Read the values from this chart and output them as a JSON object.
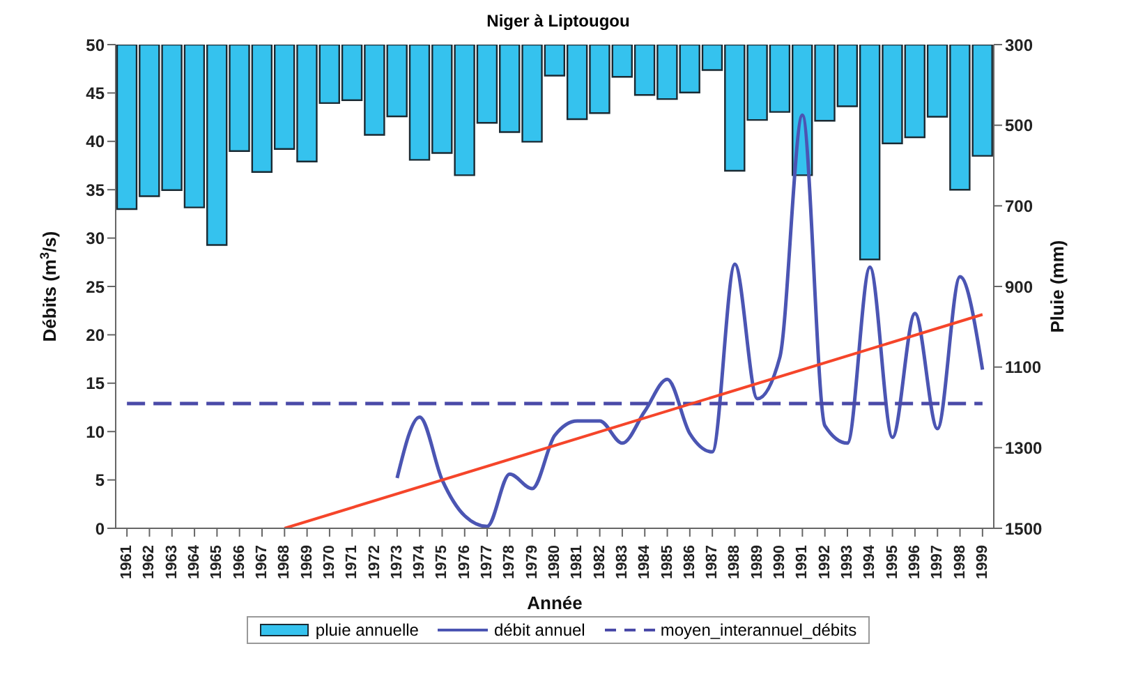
{
  "chart_data": {
    "type": "bar",
    "title": "Niger à Liptougou",
    "xlabel": "Année",
    "ylabel": "Débits (m$^{3}$/s)",
    "y2label": "Pluie (mm)",
    "categories": [
      "1961",
      "1962",
      "1963",
      "1964",
      "1965",
      "1966",
      "1967",
      "1968",
      "1969",
      "1970",
      "1971",
      "1972",
      "1973",
      "1974",
      "1975",
      "1976",
      "1977",
      "1978",
      "1979",
      "1980",
      "1981",
      "1982",
      "1983",
      "1984",
      "1985",
      "1986",
      "1987",
      "1988",
      "1989",
      "1990",
      "1991",
      "1992",
      "1993",
      "1994",
      "1995",
      "1996",
      "1997",
      "1998",
      "1999"
    ],
    "series": [
      {
        "name": "pluie annuelle",
        "axis": "y2",
        "color": "#35c2ee",
        "values": [
          708,
          676,
          661,
          704,
          797,
          564,
          616,
          559,
          590,
          445,
          438,
          524,
          478,
          586,
          569,
          624,
          494,
          517,
          541,
          377,
          485,
          470,
          380,
          425,
          435,
          419,
          363,
          613,
          487,
          467,
          624,
          489,
          453,
          833,
          545,
          530,
          479,
          660,
          576
        ]
      },
      {
        "name": "débit annuel",
        "type": "line",
        "color": "#4b55b3",
        "values": [
          null,
          null,
          null,
          null,
          null,
          null,
          null,
          null,
          null,
          null,
          null,
          null,
          5.2,
          11.5,
          5.0,
          1.3,
          0.2,
          5.6,
          4.1,
          9.6,
          11.1,
          11.1,
          8.8,
          12.1,
          15.4,
          9.8,
          7.9,
          27.3,
          13.4,
          17.7,
          42.7,
          10.6,
          8.8,
          27.0,
          9.4,
          22.2,
          10.3,
          26.0,
          16.4
        ]
      },
      {
        "name": "moyen_interannuel_débits",
        "type": "line",
        "line_style": "dashed",
        "color": "#4a4aa8",
        "values": [
          12.9,
          12.9,
          12.9,
          12.9,
          12.9,
          12.9,
          12.9,
          12.9,
          12.9,
          12.9,
          12.9,
          12.9,
          12.9,
          12.9,
          12.9,
          12.9,
          12.9,
          12.9,
          12.9,
          12.9,
          12.9,
          12.9,
          12.9,
          12.9,
          12.9,
          12.9,
          12.9,
          12.9,
          12.9,
          12.9,
          12.9,
          12.9,
          12.9,
          12.9,
          12.9,
          12.9,
          12.9,
          12.9,
          12.9
        ]
      },
      {
        "type": "line",
        "color": "#f5452a",
        "values": [
          null,
          null,
          null,
          null,
          null,
          null,
          null,
          0,
          null,
          null,
          null,
          null,
          null,
          null,
          null,
          null,
          null,
          null,
          null,
          null,
          null,
          null,
          null,
          null,
          null,
          null,
          null,
          null,
          null,
          null,
          null,
          null,
          null,
          null,
          null,
          null,
          null,
          null,
          22.1
        ]
      }
    ],
    "ylim": [
      0,
      50
    ],
    "yticks": [
      0,
      5,
      10,
      15,
      20,
      25,
      30,
      35,
      40,
      45,
      50
    ],
    "y2lim": [
      1500,
      300
    ],
    "y2ticks": [
      300,
      500,
      700,
      900,
      1100,
      1300,
      1500
    ],
    "grid": false,
    "legend": "bottom",
    "marker": "none"
  }
}
